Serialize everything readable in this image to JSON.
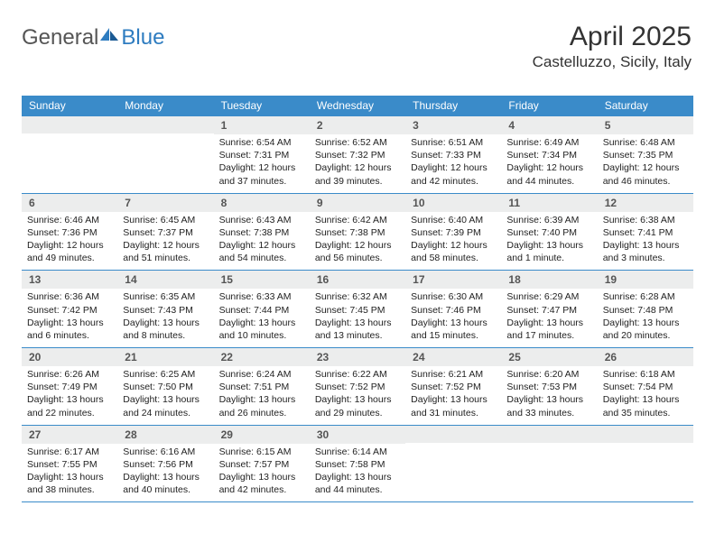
{
  "logo": {
    "text1": "General",
    "text2": "Blue"
  },
  "header": {
    "title": "April 2025",
    "location": "Castelluzzo, Sicily, Italy"
  },
  "colors": {
    "header_blue": "#3a8bc9",
    "daynum_bg": "#eceded",
    "logo_blue": "#2e7cc0",
    "text": "#222222"
  },
  "dayNames": [
    "Sunday",
    "Monday",
    "Tuesday",
    "Wednesday",
    "Thursday",
    "Friday",
    "Saturday"
  ],
  "weeks": [
    [
      {
        "n": "",
        "sr": "",
        "ss": "",
        "dl": ""
      },
      {
        "n": "",
        "sr": "",
        "ss": "",
        "dl": ""
      },
      {
        "n": "1",
        "sr": "Sunrise: 6:54 AM",
        "ss": "Sunset: 7:31 PM",
        "dl": "Daylight: 12 hours and 37 minutes."
      },
      {
        "n": "2",
        "sr": "Sunrise: 6:52 AM",
        "ss": "Sunset: 7:32 PM",
        "dl": "Daylight: 12 hours and 39 minutes."
      },
      {
        "n": "3",
        "sr": "Sunrise: 6:51 AM",
        "ss": "Sunset: 7:33 PM",
        "dl": "Daylight: 12 hours and 42 minutes."
      },
      {
        "n": "4",
        "sr": "Sunrise: 6:49 AM",
        "ss": "Sunset: 7:34 PM",
        "dl": "Daylight: 12 hours and 44 minutes."
      },
      {
        "n": "5",
        "sr": "Sunrise: 6:48 AM",
        "ss": "Sunset: 7:35 PM",
        "dl": "Daylight: 12 hours and 46 minutes."
      }
    ],
    [
      {
        "n": "6",
        "sr": "Sunrise: 6:46 AM",
        "ss": "Sunset: 7:36 PM",
        "dl": "Daylight: 12 hours and 49 minutes."
      },
      {
        "n": "7",
        "sr": "Sunrise: 6:45 AM",
        "ss": "Sunset: 7:37 PM",
        "dl": "Daylight: 12 hours and 51 minutes."
      },
      {
        "n": "8",
        "sr": "Sunrise: 6:43 AM",
        "ss": "Sunset: 7:38 PM",
        "dl": "Daylight: 12 hours and 54 minutes."
      },
      {
        "n": "9",
        "sr": "Sunrise: 6:42 AM",
        "ss": "Sunset: 7:38 PM",
        "dl": "Daylight: 12 hours and 56 minutes."
      },
      {
        "n": "10",
        "sr": "Sunrise: 6:40 AM",
        "ss": "Sunset: 7:39 PM",
        "dl": "Daylight: 12 hours and 58 minutes."
      },
      {
        "n": "11",
        "sr": "Sunrise: 6:39 AM",
        "ss": "Sunset: 7:40 PM",
        "dl": "Daylight: 13 hours and 1 minute."
      },
      {
        "n": "12",
        "sr": "Sunrise: 6:38 AM",
        "ss": "Sunset: 7:41 PM",
        "dl": "Daylight: 13 hours and 3 minutes."
      }
    ],
    [
      {
        "n": "13",
        "sr": "Sunrise: 6:36 AM",
        "ss": "Sunset: 7:42 PM",
        "dl": "Daylight: 13 hours and 6 minutes."
      },
      {
        "n": "14",
        "sr": "Sunrise: 6:35 AM",
        "ss": "Sunset: 7:43 PM",
        "dl": "Daylight: 13 hours and 8 minutes."
      },
      {
        "n": "15",
        "sr": "Sunrise: 6:33 AM",
        "ss": "Sunset: 7:44 PM",
        "dl": "Daylight: 13 hours and 10 minutes."
      },
      {
        "n": "16",
        "sr": "Sunrise: 6:32 AM",
        "ss": "Sunset: 7:45 PM",
        "dl": "Daylight: 13 hours and 13 minutes."
      },
      {
        "n": "17",
        "sr": "Sunrise: 6:30 AM",
        "ss": "Sunset: 7:46 PM",
        "dl": "Daylight: 13 hours and 15 minutes."
      },
      {
        "n": "18",
        "sr": "Sunrise: 6:29 AM",
        "ss": "Sunset: 7:47 PM",
        "dl": "Daylight: 13 hours and 17 minutes."
      },
      {
        "n": "19",
        "sr": "Sunrise: 6:28 AM",
        "ss": "Sunset: 7:48 PM",
        "dl": "Daylight: 13 hours and 20 minutes."
      }
    ],
    [
      {
        "n": "20",
        "sr": "Sunrise: 6:26 AM",
        "ss": "Sunset: 7:49 PM",
        "dl": "Daylight: 13 hours and 22 minutes."
      },
      {
        "n": "21",
        "sr": "Sunrise: 6:25 AM",
        "ss": "Sunset: 7:50 PM",
        "dl": "Daylight: 13 hours and 24 minutes."
      },
      {
        "n": "22",
        "sr": "Sunrise: 6:24 AM",
        "ss": "Sunset: 7:51 PM",
        "dl": "Daylight: 13 hours and 26 minutes."
      },
      {
        "n": "23",
        "sr": "Sunrise: 6:22 AM",
        "ss": "Sunset: 7:52 PM",
        "dl": "Daylight: 13 hours and 29 minutes."
      },
      {
        "n": "24",
        "sr": "Sunrise: 6:21 AM",
        "ss": "Sunset: 7:52 PM",
        "dl": "Daylight: 13 hours and 31 minutes."
      },
      {
        "n": "25",
        "sr": "Sunrise: 6:20 AM",
        "ss": "Sunset: 7:53 PM",
        "dl": "Daylight: 13 hours and 33 minutes."
      },
      {
        "n": "26",
        "sr": "Sunrise: 6:18 AM",
        "ss": "Sunset: 7:54 PM",
        "dl": "Daylight: 13 hours and 35 minutes."
      }
    ],
    [
      {
        "n": "27",
        "sr": "Sunrise: 6:17 AM",
        "ss": "Sunset: 7:55 PM",
        "dl": "Daylight: 13 hours and 38 minutes."
      },
      {
        "n": "28",
        "sr": "Sunrise: 6:16 AM",
        "ss": "Sunset: 7:56 PM",
        "dl": "Daylight: 13 hours and 40 minutes."
      },
      {
        "n": "29",
        "sr": "Sunrise: 6:15 AM",
        "ss": "Sunset: 7:57 PM",
        "dl": "Daylight: 13 hours and 42 minutes."
      },
      {
        "n": "30",
        "sr": "Sunrise: 6:14 AM",
        "ss": "Sunset: 7:58 PM",
        "dl": "Daylight: 13 hours and 44 minutes."
      },
      {
        "n": "",
        "sr": "",
        "ss": "",
        "dl": ""
      },
      {
        "n": "",
        "sr": "",
        "ss": "",
        "dl": ""
      },
      {
        "n": "",
        "sr": "",
        "ss": "",
        "dl": ""
      }
    ]
  ]
}
